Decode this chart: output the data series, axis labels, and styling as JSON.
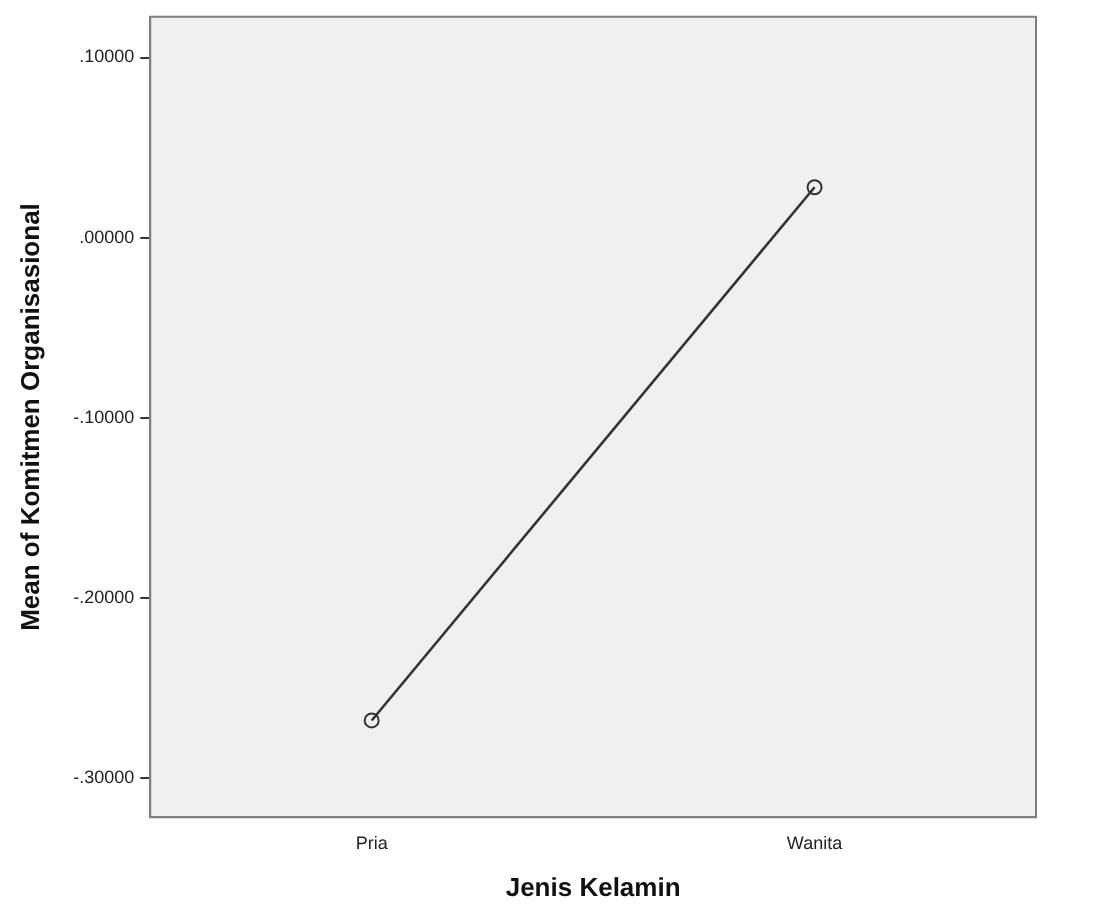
{
  "chart_data": {
    "type": "line",
    "xlabel": "Jenis Kelamin",
    "ylabel": "Mean of Komitmen Organisasional",
    "categories": [
      "Pria",
      "Wanita"
    ],
    "series": [
      {
        "color": "#333333",
        "values": [
          -0.268,
          0.028
        ]
      }
    ],
    "ylim": [
      -0.3217,
      0.1226
    ],
    "yticks": [
      {
        "value": 0.1,
        "label": ".10000"
      },
      {
        "value": 0,
        "label": ".00000"
      },
      {
        "value": -0.1,
        "label": "-.10000"
      },
      {
        "value": -0.2,
        "label": "-.20000"
      },
      {
        "value": -0.3,
        "label": "-.30000"
      }
    ],
    "grid": false,
    "legend": false,
    "marker": "circle",
    "line_style": "solid"
  }
}
